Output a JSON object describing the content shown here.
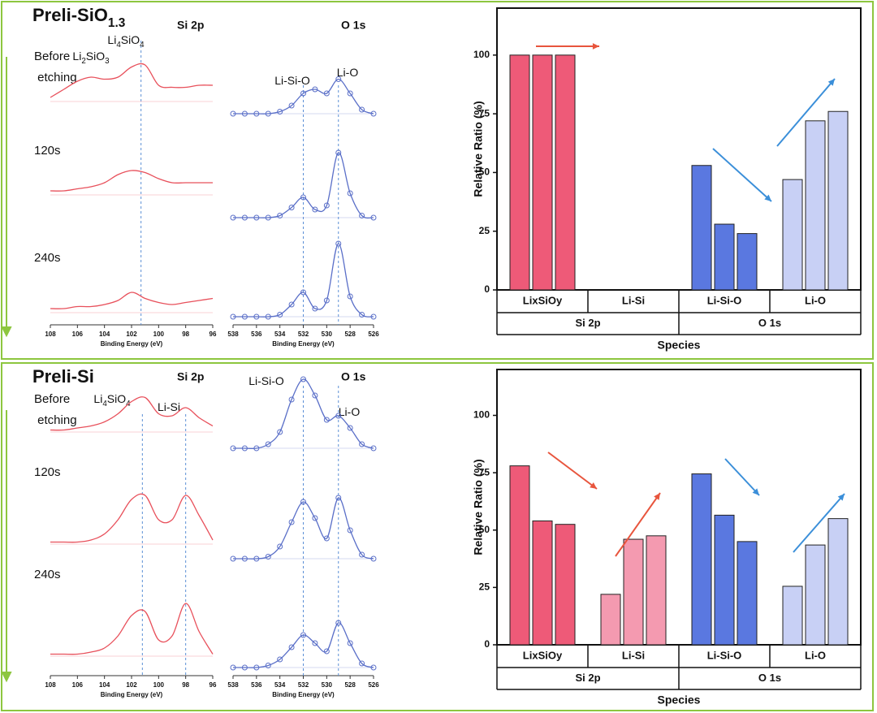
{
  "chart_data": [
    {
      "type": "line",
      "title": "Preli-SiO1.3",
      "header": "Si 2p",
      "xlabel": "Binding Energy (eV)",
      "color": "#e8505b",
      "x": [
        108,
        107,
        106,
        105,
        104,
        103,
        102,
        101,
        100,
        99,
        98,
        97,
        96
      ],
      "xlim": [
        108,
        96
      ],
      "xticks": [
        108,
        106,
        104,
        102,
        100,
        98,
        96
      ],
      "annotations": [
        "Li2SiO3",
        "Li4SiO4"
      ],
      "reference_lines": [
        101.3
      ],
      "series": [
        {
          "name": "Before etching",
          "values": [
            0.1,
            0.3,
            0.5,
            0.6,
            0.55,
            0.6,
            0.85,
            0.9,
            0.4,
            0.35,
            0.35,
            0.4,
            0.4
          ]
        },
        {
          "name": "120s",
          "values": [
            0.1,
            0.1,
            0.15,
            0.2,
            0.3,
            0.5,
            0.6,
            0.55,
            0.4,
            0.3,
            0.3,
            0.3,
            0.3
          ]
        },
        {
          "name": "240s",
          "values": [
            0.1,
            0.1,
            0.15,
            0.15,
            0.2,
            0.3,
            0.5,
            0.35,
            0.25,
            0.2,
            0.25,
            0.3,
            0.35
          ]
        }
      ]
    },
    {
      "type": "line",
      "header": "O 1s",
      "xlabel": "Binding Energy (eV)",
      "color": "#5a6fc8",
      "x": [
        538,
        537,
        536,
        535,
        534,
        533,
        532,
        531,
        530,
        529,
        528,
        527,
        526
      ],
      "xlim": [
        538,
        526
      ],
      "xticks": [
        538,
        536,
        534,
        532,
        530,
        528,
        526
      ],
      "annotations": [
        "Li-Si-O",
        "Li-O"
      ],
      "reference_lines": [
        532,
        529
      ],
      "series": [
        {
          "values": [
            0,
            0,
            0,
            0,
            0.05,
            0.2,
            0.5,
            0.6,
            0.5,
            0.85,
            0.5,
            0.1,
            0
          ]
        },
        {
          "values": [
            0,
            0,
            0,
            0,
            0.05,
            0.25,
            0.5,
            0.2,
            0.3,
            1.6,
            0.6,
            0.05,
            0
          ]
        },
        {
          "values": [
            0,
            0,
            0,
            0,
            0.05,
            0.3,
            0.6,
            0.2,
            0.4,
            1.8,
            0.5,
            0.05,
            0
          ]
        }
      ]
    },
    {
      "type": "bar",
      "ylabel": "Relative Ratio (%)",
      "xlabel": "Species",
      "ylim": [
        0,
        120
      ],
      "yticks": [
        0,
        25,
        50,
        75,
        100
      ],
      "categories": [
        "LixSiOy",
        "Li-Si",
        "Li-Si-O",
        "Li-O"
      ],
      "groups": [
        "Si 2p",
        "O 1s"
      ],
      "colors": [
        "#ee5a78",
        "#f49ab0",
        "#5a78e0",
        "#c8d0f5"
      ],
      "values": [
        [
          100,
          100,
          100
        ],
        [
          0,
          0,
          0
        ],
        [
          53,
          28,
          24
        ],
        [
          47,
          72,
          76
        ]
      ]
    },
    {
      "type": "line",
      "title": "Preli-Si",
      "header": "Si 2p",
      "xlabel": "Binding Energy (eV)",
      "color": "#e8505b",
      "x": [
        108,
        107,
        106,
        105,
        104,
        103,
        102,
        101,
        100,
        99,
        98,
        97,
        96
      ],
      "xlim": [
        108,
        96
      ],
      "xticks": [
        108,
        106,
        104,
        102,
        100,
        98,
        96
      ],
      "annotations": [
        "Li4SiO4",
        "Li-Si"
      ],
      "reference_lines": [
        101.2,
        98
      ],
      "series": [
        {
          "name": "Before etching",
          "values": [
            0.05,
            0.05,
            0.1,
            0.15,
            0.25,
            0.45,
            0.75,
            0.85,
            0.45,
            0.4,
            0.6,
            0.35,
            0.15
          ]
        },
        {
          "name": "120s",
          "values": [
            0.05,
            0.05,
            0.05,
            0.1,
            0.25,
            0.6,
            1.1,
            1.2,
            0.6,
            0.6,
            1.2,
            0.7,
            0.1
          ]
        },
        {
          "name": "240s",
          "values": [
            0.05,
            0.05,
            0.05,
            0.1,
            0.2,
            0.5,
            1.0,
            1.1,
            0.4,
            0.5,
            1.3,
            0.6,
            0.05
          ]
        }
      ]
    },
    {
      "type": "line",
      "header": "O 1s",
      "xlabel": "Binding Energy (eV)",
      "color": "#5a6fc8",
      "x": [
        538,
        537,
        536,
        535,
        534,
        533,
        532,
        531,
        530,
        529,
        528,
        527,
        526
      ],
      "xlim": [
        538,
        526
      ],
      "xticks": [
        538,
        536,
        534,
        532,
        530,
        528,
        526
      ],
      "annotations": [
        "Li-Si-O",
        "Li-O"
      ],
      "reference_lines": [
        532,
        529
      ],
      "series": [
        {
          "values": [
            0,
            0,
            0,
            0.1,
            0.4,
            1.2,
            1.7,
            1.3,
            0.7,
            0.8,
            0.5,
            0.1,
            0
          ]
        },
        {
          "values": [
            0,
            0,
            0,
            0.05,
            0.3,
            0.9,
            1.4,
            1.0,
            0.5,
            1.5,
            0.7,
            0.1,
            0
          ]
        },
        {
          "values": [
            0,
            0,
            0,
            0.05,
            0.2,
            0.5,
            0.8,
            0.6,
            0.4,
            1.1,
            0.6,
            0.1,
            0
          ]
        }
      ]
    },
    {
      "type": "bar",
      "ylabel": "Relative Ratio (%)",
      "xlabel": "Species",
      "ylim": [
        0,
        120
      ],
      "yticks": [
        0,
        25,
        50,
        75,
        100
      ],
      "categories": [
        "LixSiOy",
        "Li-Si",
        "Li-Si-O",
        "Li-O"
      ],
      "groups": [
        "Si 2p",
        "O 1s"
      ],
      "colors": [
        "#ee5a78",
        "#f49ab0",
        "#5a78e0",
        "#c8d0f5"
      ],
      "values": [
        [
          78,
          54,
          52.5
        ],
        [
          22,
          46,
          47.5
        ],
        [
          74.5,
          56.5,
          45
        ],
        [
          25.5,
          43.5,
          55
        ]
      ]
    }
  ]
}
